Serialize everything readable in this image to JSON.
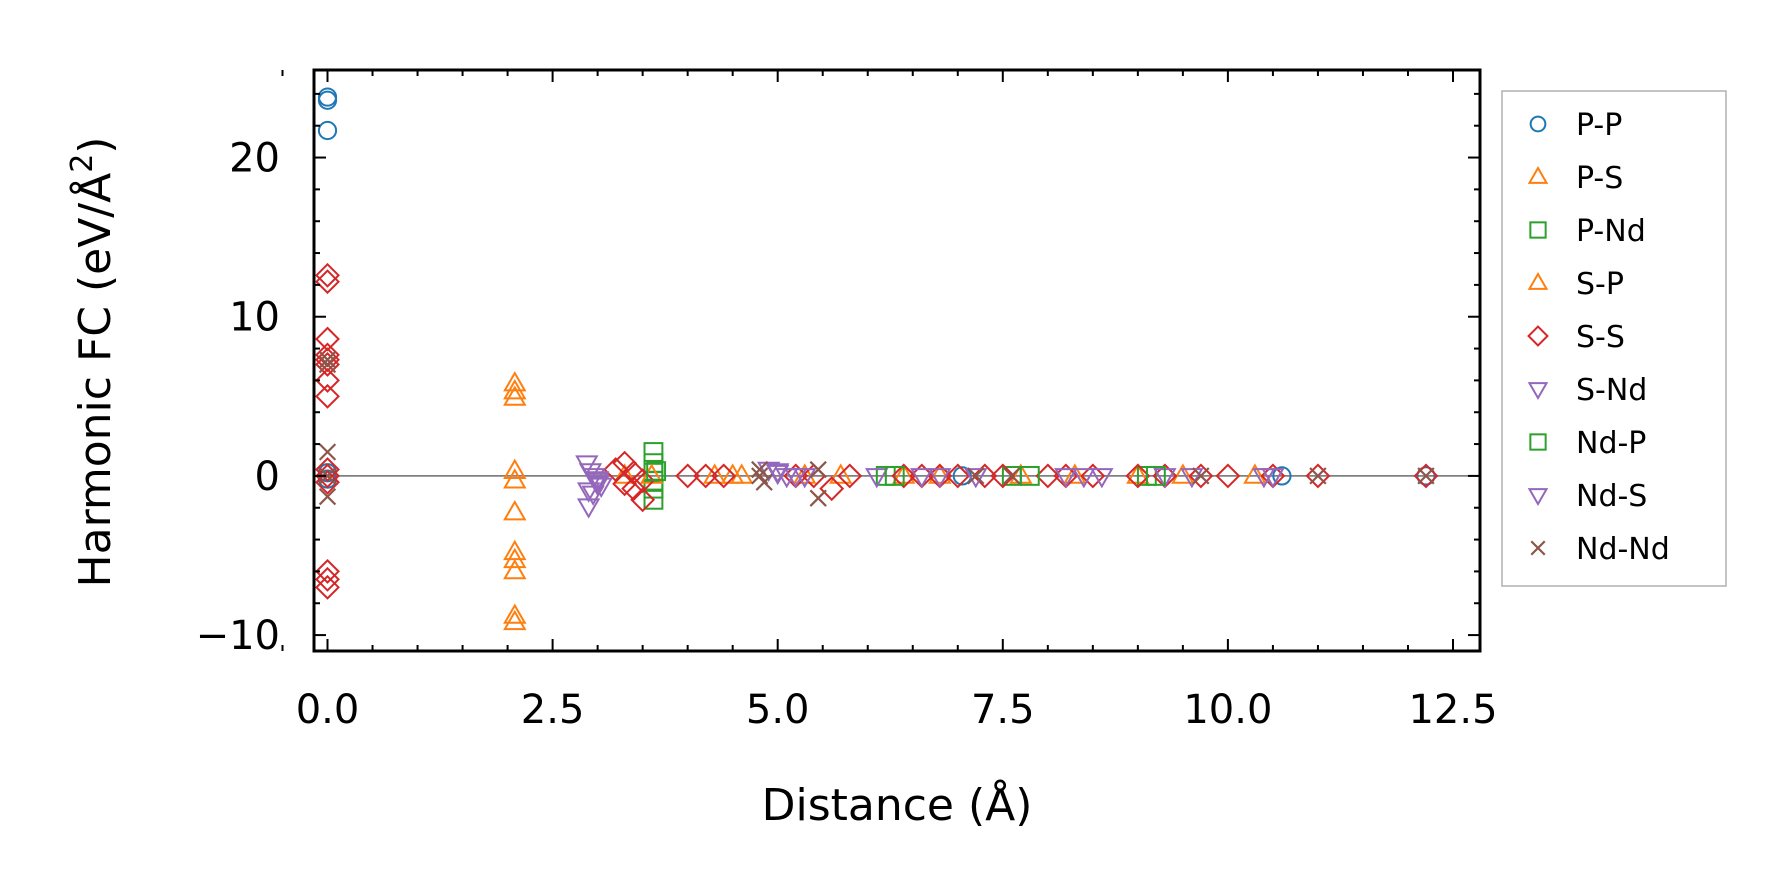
{
  "chart_data": {
    "type": "scatter",
    "title": "",
    "xlabel": "Distance (Å)",
    "ylabel_text": "Harmonic FC (eV/Å",
    "ylabel_sup": "2",
    "ylabel_close": ")",
    "xlim": [
      -0.15,
      12.8
    ],
    "ylim": [
      -11,
      25.5
    ],
    "xticks": [
      0.0,
      2.5,
      5.0,
      7.5,
      10.0,
      12.5
    ],
    "xtick_labels": [
      "0.0",
      "2.5",
      "5.0",
      "7.5",
      "10.0",
      "12.5"
    ],
    "yticks": [
      -10,
      0,
      10,
      20
    ],
    "ytick_labels": [
      "−10",
      "0",
      "10",
      "20"
    ],
    "zero_line": 0,
    "legend_position": "outside-right",
    "series": [
      {
        "name": "P-P",
        "marker": "circle",
        "color": "#1f77b4",
        "x": [
          0,
          0,
          0,
          0,
          0,
          7.05,
          10.6,
          12.2
        ],
        "y": [
          23.8,
          23.6,
          21.7,
          0.2,
          -0.2,
          0,
          0,
          0
        ]
      },
      {
        "name": "P-S",
        "marker": "triangle-up",
        "color": "#ff7f0e",
        "x": [
          2.08,
          2.08,
          2.08,
          2.08,
          2.08,
          2.08,
          2.08,
          2.08,
          2.08,
          2.08,
          2.08,
          4.3,
          4.5,
          5.7,
          6.4,
          7.7,
          9.0
        ],
        "y": [
          5.8,
          5.3,
          4.9,
          0.3,
          -0.3,
          -2.3,
          -4.8,
          -5.3,
          -6.0,
          -8.8,
          -9.2,
          0,
          0,
          0,
          0,
          0,
          0
        ]
      },
      {
        "name": "P-Nd",
        "marker": "square",
        "color": "#2ca02c",
        "x": [
          3.62,
          3.62,
          3.62,
          3.62,
          3.62,
          3.62,
          6.2,
          7.6,
          9.1
        ],
        "y": [
          1.5,
          0.8,
          0.2,
          -0.3,
          -0.8,
          -1.5,
          0,
          0,
          0
        ]
      },
      {
        "name": "S-P",
        "marker": "triangle-up",
        "color": "#ff7f0e",
        "x": [
          3.3,
          3.6,
          4.6,
          5.3,
          6.8,
          8.3,
          9.5,
          10.3
        ],
        "y": [
          0,
          0,
          0,
          0,
          0,
          0,
          0,
          0
        ]
      },
      {
        "name": "S-S",
        "marker": "diamond",
        "color": "#d62728",
        "x": [
          0,
          0,
          0,
          0,
          0,
          0,
          0,
          0,
          0,
          0,
          0,
          0,
          0,
          0,
          3.2,
          3.3,
          3.4,
          3.5,
          3.4,
          3.3,
          3.5,
          4.0,
          4.2,
          4.4,
          5.2,
          5.4,
          5.6,
          5.8,
          6.4,
          6.6,
          6.8,
          7.0,
          7.3,
          7.5,
          8.0,
          8.2,
          8.5,
          9.0,
          9.3,
          9.7,
          10.0,
          10.5,
          11.0,
          12.2
        ],
        "y": [
          12.6,
          12.2,
          8.6,
          7.6,
          7.3,
          7.0,
          6.0,
          5.0,
          0.4,
          0,
          -0.4,
          -6.0,
          -6.5,
          -7.0,
          0.4,
          0.8,
          0.2,
          -0.3,
          -0.8,
          -0.5,
          -1.5,
          0,
          0,
          0,
          0,
          0,
          -0.8,
          0,
          0,
          0,
          0,
          0,
          0,
          0,
          0,
          0,
          0,
          0,
          0,
          0,
          0,
          0,
          0,
          0
        ]
      },
      {
        "name": "S-Nd",
        "marker": "triangle-down",
        "color": "#9467bd",
        "x": [
          2.88,
          2.92,
          2.96,
          3.0,
          3.04,
          2.9,
          2.95,
          3.0,
          2.9,
          4.9,
          5.0,
          5.1,
          5.3,
          6.1,
          6.6,
          7.2,
          8.2,
          8.6,
          9.3,
          10.4
        ],
        "y": [
          0.8,
          0.3,
          0,
          -0.3,
          -0.6,
          -0.9,
          -1.1,
          -0.2,
          -1.9,
          0.4,
          0.2,
          0,
          0,
          0,
          0,
          0,
          0,
          0,
          0,
          0
        ]
      },
      {
        "name": "Nd-P",
        "marker": "square",
        "color": "#2ca02c",
        "x": [
          3.65,
          6.3,
          7.8,
          9.2
        ],
        "y": [
          0.3,
          0,
          0,
          0
        ]
      },
      {
        "name": "Nd-S",
        "marker": "triangle-down",
        "color": "#9467bd",
        "x": [
          3.0,
          5.0,
          5.2,
          6.8,
          8.4,
          9.6,
          10.5
        ],
        "y": [
          -0.5,
          0.3,
          0,
          0,
          0,
          0,
          0
        ]
      },
      {
        "name": "Nd-Nd",
        "marker": "x",
        "color": "#8c564b",
        "x": [
          0,
          0,
          0,
          0,
          0,
          4.8,
          4.8,
          4.85,
          5.45,
          5.45,
          7.2,
          7.6,
          9.7,
          11.0,
          12.2
        ],
        "y": [
          7.3,
          7.0,
          1.5,
          0,
          -1.3,
          0.4,
          0,
          -0.4,
          0.4,
          -1.4,
          0,
          0,
          0,
          0,
          0
        ]
      }
    ]
  }
}
